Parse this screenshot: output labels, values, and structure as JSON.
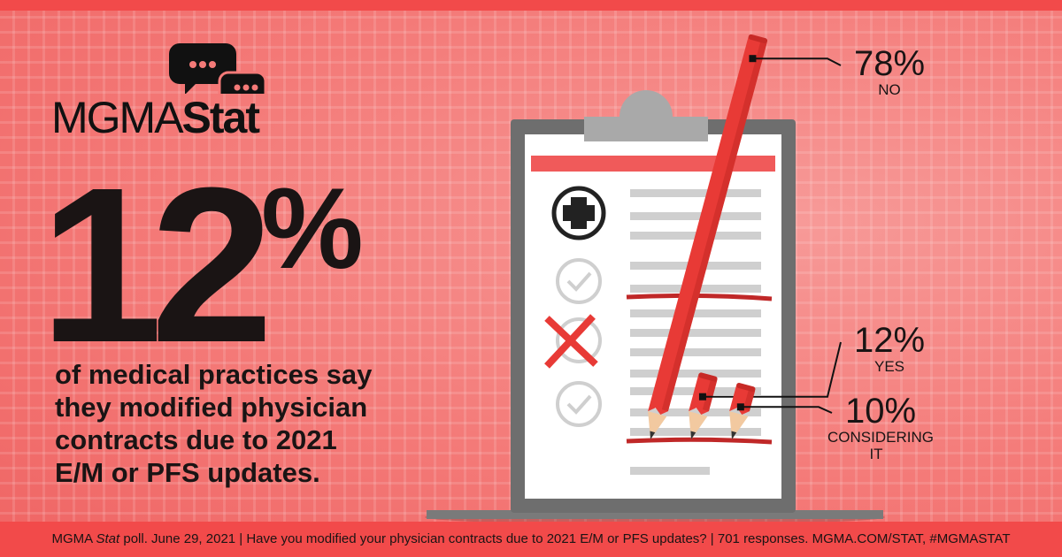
{
  "brand": {
    "logo_thin": "MGMA",
    "logo_bold": "Stat",
    "icon": "chat-bubbles-icon"
  },
  "headline": {
    "value": "12",
    "unit": "%",
    "description": "of medical practices say they modified physician contracts due to 2021 E/M or PFS updates."
  },
  "footer": {
    "prefix": "MGMA ",
    "stat": "Stat",
    "text": " poll. June 29, 2021  |  Have you modified your physician contracts due to 2021 E/M or PFS updates?  |  701 responses. MGMA.COM/STAT, #MGMASTAT"
  },
  "colors": {
    "accent": "#f24a4a",
    "background": "#f47a78",
    "pencil": "#e83a36",
    "text": "#1a1414"
  },
  "chart_data": {
    "type": "bar",
    "title": "",
    "categories": [
      "NO",
      "YES",
      "CONSIDERING IT"
    ],
    "values": [
      78,
      12,
      10
    ],
    "value_labels": [
      "78%",
      "12%",
      "10%"
    ],
    "unit": "%",
    "ylim": [
      0,
      100
    ]
  }
}
